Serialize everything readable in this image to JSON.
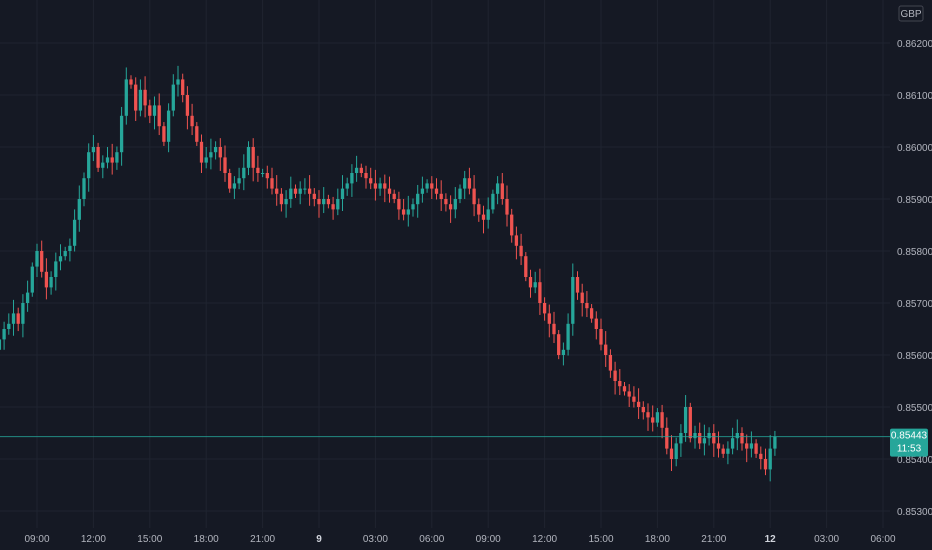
{
  "chart_data": {
    "type": "candlestick",
    "currency": "GBP",
    "ylim": [
      0.8525,
      0.8625
    ],
    "y_ticks": [
      "0.86200",
      "0.86100",
      "0.86000",
      "0.85900",
      "0.85800",
      "0.85700",
      "0.85600",
      "0.85500",
      "0.85400",
      "0.85300"
    ],
    "y_tick_values": [
      0.862,
      0.861,
      0.86,
      0.859,
      0.858,
      0.857,
      0.856,
      0.855,
      0.854,
      0.853
    ],
    "x_ticks": [
      {
        "label": "09:00",
        "hour": 0
      },
      {
        "label": "12:00",
        "hour": 3
      },
      {
        "label": "15:00",
        "hour": 6
      },
      {
        "label": "18:00",
        "hour": 9
      },
      {
        "label": "21:00",
        "hour": 12
      },
      {
        "label": "9",
        "hour": 15,
        "bold": true
      },
      {
        "label": "03:00",
        "hour": 18
      },
      {
        "label": "06:00",
        "hour": 21
      },
      {
        "label": "09:00",
        "hour": 24
      },
      {
        "label": "12:00",
        "hour": 27
      },
      {
        "label": "15:00",
        "hour": 30
      },
      {
        "label": "18:00",
        "hour": 33
      },
      {
        "label": "21:00",
        "hour": 36
      },
      {
        "label": "12",
        "hour": 39,
        "bold": true
      },
      {
        "label": "03:00",
        "hour": 42
      },
      {
        "label": "06:00",
        "hour": 45
      }
    ],
    "last_price": "0.85443",
    "last_price_value": 0.85443,
    "countdown": "11:53",
    "up_color": "#26a69a",
    "down_color": "#ef5350",
    "background": "#151924",
    "candles_start_hour": -2,
    "candle_minutes": 15,
    "closes": [
      0.8563,
      0.8565,
      0.8566,
      0.8568,
      0.8566,
      0.857,
      0.8572,
      0.8577,
      0.858,
      0.8576,
      0.8573,
      0.8575,
      0.8578,
      0.8579,
      0.858,
      0.8581,
      0.8586,
      0.859,
      0.8594,
      0.8599,
      0.86,
      0.8596,
      0.8597,
      0.8598,
      0.8597,
      0.8599,
      0.8606,
      0.8613,
      0.8612,
      0.8607,
      0.8611,
      0.8608,
      0.8606,
      0.8608,
      0.8604,
      0.8601,
      0.8607,
      0.8612,
      0.8613,
      0.861,
      0.8606,
      0.8604,
      0.8601,
      0.8597,
      0.8598,
      0.8599,
      0.86,
      0.8598,
      0.8595,
      0.8592,
      0.8593,
      0.8594,
      0.8596,
      0.86,
      0.8596,
      0.8595,
      0.8595,
      0.8594,
      0.8592,
      0.8591,
      0.8589,
      0.859,
      0.8592,
      0.8591,
      0.8592,
      0.8592,
      0.8591,
      0.859,
      0.8589,
      0.859,
      0.8589,
      0.8588,
      0.859,
      0.8592,
      0.8593,
      0.8595,
      0.8596,
      0.8595,
      0.8594,
      0.8593,
      0.8592,
      0.8593,
      0.8592,
      0.8591,
      0.859,
      0.8588,
      0.8587,
      0.8588,
      0.8589,
      0.8591,
      0.8592,
      0.8593,
      0.8592,
      0.8591,
      0.859,
      0.8589,
      0.8588,
      0.859,
      0.8592,
      0.8594,
      0.8592,
      0.8589,
      0.8587,
      0.8586,
      0.8588,
      0.8591,
      0.8593,
      0.859,
      0.8587,
      0.8583,
      0.8581,
      0.8579,
      0.8575,
      0.8573,
      0.8574,
      0.857,
      0.8568,
      0.8566,
      0.8564,
      0.856,
      0.8561,
      0.8566,
      0.8575,
      0.8572,
      0.857,
      0.8569,
      0.8567,
      0.8565,
      0.8562,
      0.856,
      0.8557,
      0.8555,
      0.8554,
      0.8553,
      0.8552,
      0.8551,
      0.855,
      0.8549,
      0.8548,
      0.8547,
      0.8549,
      0.8546,
      0.8542,
      0.854,
      0.8543,
      0.8545,
      0.855,
      0.8544,
      0.8545,
      0.8543,
      0.8544,
      0.8545,
      0.8543,
      0.8542,
      0.8541,
      0.8542,
      0.8544,
      0.8545,
      0.8543,
      0.8542,
      0.8543,
      0.8541,
      0.854,
      0.8538,
      0.8542,
      0.85443
    ]
  }
}
